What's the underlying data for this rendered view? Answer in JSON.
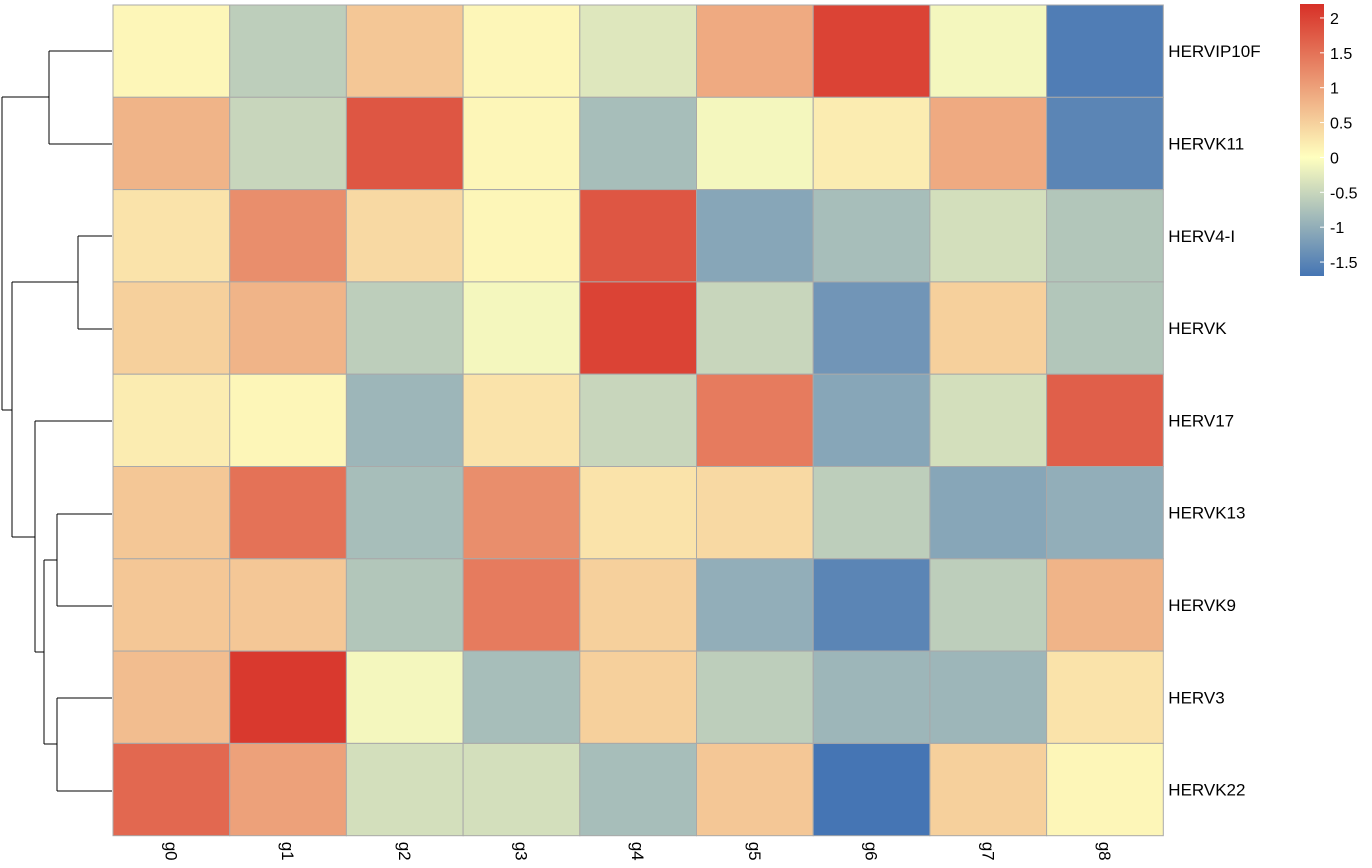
{
  "chart_data": {
    "type": "heatmap",
    "rows": [
      "HERVIP10F",
      "HERVK11",
      "HERV4-I",
      "HERVK",
      "HERV17",
      "HERVK13",
      "HERVK9",
      "HERV3",
      "HERVK22"
    ],
    "columns": [
      "g0",
      "g1",
      "g2",
      "g3",
      "g4",
      "g5",
      "g6",
      "g7",
      "g8"
    ],
    "values": [
      [
        0.1,
        -0.6,
        0.6,
        0.1,
        -0.3,
        0.9,
        2.0,
        -0.1,
        -1.6
      ],
      [
        0.8,
        -0.5,
        1.8,
        0.1,
        -0.8,
        -0.1,
        0.2,
        0.9,
        -1.5
      ],
      [
        0.3,
        1.2,
        0.4,
        0.1,
        1.8,
        -1.1,
        -0.8,
        -0.4,
        -0.7
      ],
      [
        0.5,
        0.8,
        -0.6,
        -0.1,
        2.0,
        -0.5,
        -1.3,
        0.5,
        -0.7
      ],
      [
        0.2,
        0.1,
        -0.9,
        0.3,
        -0.5,
        1.4,
        -1.1,
        -0.4,
        1.7
      ],
      [
        0.6,
        1.5,
        -0.8,
        1.2,
        0.3,
        0.4,
        -0.6,
        -1.1,
        -1.0
      ],
      [
        0.6,
        0.6,
        -0.7,
        1.4,
        0.5,
        -1.0,
        -1.5,
        -0.6,
        0.8
      ],
      [
        0.7,
        2.1,
        -0.1,
        -0.8,
        0.5,
        -0.6,
        -0.9,
        -0.9,
        0.3
      ],
      [
        1.6,
        1.0,
        -0.4,
        -0.4,
        -0.8,
        0.6,
        -1.7,
        0.5,
        0.1
      ]
    ],
    "color_scale": {
      "min": -1.7,
      "max": 2.2,
      "low": "#4575b4",
      "mid": "#ffffbf",
      "high": "#d73027"
    },
    "legend": {
      "ticks": [
        2,
        1.5,
        1,
        0.5,
        0,
        -0.5,
        -1,
        -1.5
      ],
      "tick_labels": [
        "2",
        "1.5",
        "1",
        "0.5",
        "0",
        "-0.5",
        "-1",
        "-1.5"
      ],
      "placement": "top-right"
    },
    "row_dendrogram": true,
    "grid_color": "#a9a9a9"
  }
}
